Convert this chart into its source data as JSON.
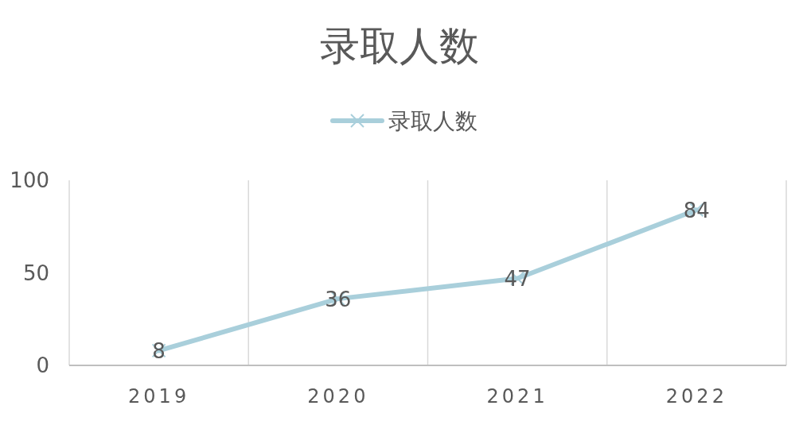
{
  "chart_data": {
    "type": "line",
    "title": "录取人数",
    "categories": [
      "2019",
      "2020",
      "2021",
      "2022"
    ],
    "series": [
      {
        "name": "录取人数",
        "color": "#a9cfdb",
        "values": [
          8,
          36,
          47,
          84
        ]
      }
    ],
    "ylim": [
      0,
      100
    ],
    "yticks": [
      0,
      50,
      100
    ],
    "grid": "x",
    "legend": "top",
    "marker": "cross",
    "data_labels": true
  }
}
